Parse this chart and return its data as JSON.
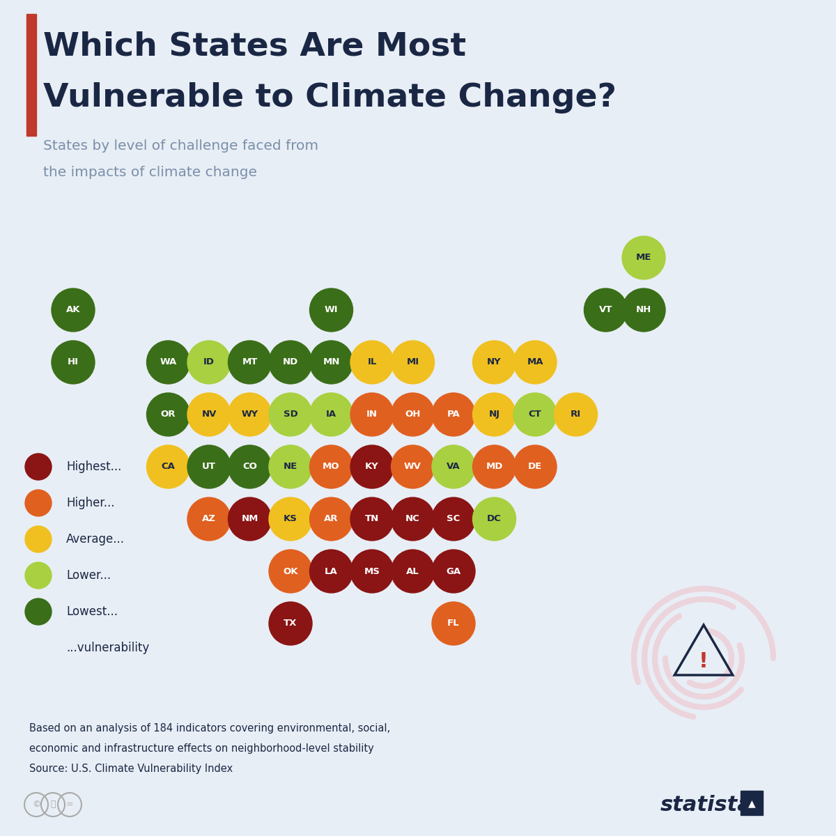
{
  "bg_color": "#e8eef5",
  "title_color": "#1a2744",
  "subtitle_color": "#7a8faa",
  "red_bar_color": "#c0392b",
  "title_line1": "Which States Are Most",
  "title_line2": "Vulnerable to Climate Change?",
  "subtitle_line1": "States by level of challenge faced from",
  "subtitle_line2": "the impacts of climate change",
  "footer1": "Based on an analysis of 184 indicators covering environmental, social,",
  "footer2": "economic and infrastructure effects on neighborhood-level stability",
  "footer3": "Source: U.S. Climate Vulnerability Index",
  "legend": [
    {
      "label": "Highest...",
      "color": "#8B1414"
    },
    {
      "label": "Higher...",
      "color": "#E06020"
    },
    {
      "label": "Average...",
      "color": "#F0C020"
    },
    {
      "label": "Lower...",
      "color": "#A8D040"
    },
    {
      "label": "Lowest...",
      "color": "#3A6E18"
    }
  ],
  "legend_suffix": "...vulnerability",
  "colors": {
    "highest": "#8B1414",
    "higher": "#E06020",
    "average": "#F0C020",
    "lower": "#A8D040",
    "lowest": "#3A6E18"
  },
  "states": [
    {
      "abbr": "ME",
      "col": 10.5,
      "row": 0,
      "color": "lower"
    },
    {
      "abbr": "AK",
      "col": 0,
      "row": 1,
      "color": "lowest"
    },
    {
      "abbr": "VT",
      "col": 9.8,
      "row": 1,
      "color": "lowest"
    },
    {
      "abbr": "NH",
      "col": 10.5,
      "row": 1,
      "color": "lowest"
    },
    {
      "abbr": "HI",
      "col": 0,
      "row": 2,
      "color": "lowest"
    },
    {
      "abbr": "WA",
      "col": 1.75,
      "row": 2,
      "color": "lowest"
    },
    {
      "abbr": "ID",
      "col": 2.5,
      "row": 2,
      "color": "lower"
    },
    {
      "abbr": "MT",
      "col": 3.25,
      "row": 2,
      "color": "lowest"
    },
    {
      "abbr": "ND",
      "col": 4.0,
      "row": 2,
      "color": "lowest"
    },
    {
      "abbr": "MN",
      "col": 4.75,
      "row": 2,
      "color": "lowest"
    },
    {
      "abbr": "WI",
      "col": 4.75,
      "row": 1,
      "color": "lowest"
    },
    {
      "abbr": "IL",
      "col": 5.5,
      "row": 2,
      "color": "average"
    },
    {
      "abbr": "MI",
      "col": 6.25,
      "row": 2,
      "color": "average"
    },
    {
      "abbr": "NY",
      "col": 7.75,
      "row": 2,
      "color": "average"
    },
    {
      "abbr": "MA",
      "col": 8.5,
      "row": 2,
      "color": "average"
    },
    {
      "abbr": "OR",
      "col": 1.75,
      "row": 3,
      "color": "lowest"
    },
    {
      "abbr": "NV",
      "col": 2.5,
      "row": 3,
      "color": "average"
    },
    {
      "abbr": "WY",
      "col": 3.25,
      "row": 3,
      "color": "average"
    },
    {
      "abbr": "SD",
      "col": 4.0,
      "row": 3,
      "color": "lower"
    },
    {
      "abbr": "IA",
      "col": 4.75,
      "row": 3,
      "color": "lower"
    },
    {
      "abbr": "IN",
      "col": 5.5,
      "row": 3,
      "color": "higher"
    },
    {
      "abbr": "OH",
      "col": 6.25,
      "row": 3,
      "color": "higher"
    },
    {
      "abbr": "PA",
      "col": 7.0,
      "row": 3,
      "color": "higher"
    },
    {
      "abbr": "NJ",
      "col": 7.75,
      "row": 3,
      "color": "average"
    },
    {
      "abbr": "CT",
      "col": 8.5,
      "row": 3,
      "color": "lower"
    },
    {
      "abbr": "RI",
      "col": 9.25,
      "row": 3,
      "color": "average"
    },
    {
      "abbr": "CA",
      "col": 1.75,
      "row": 4,
      "color": "average"
    },
    {
      "abbr": "UT",
      "col": 2.5,
      "row": 4,
      "color": "lowest"
    },
    {
      "abbr": "CO",
      "col": 3.25,
      "row": 4,
      "color": "lowest"
    },
    {
      "abbr": "NE",
      "col": 4.0,
      "row": 4,
      "color": "lower"
    },
    {
      "abbr": "MO",
      "col": 4.75,
      "row": 4,
      "color": "higher"
    },
    {
      "abbr": "KY",
      "col": 5.5,
      "row": 4,
      "color": "highest"
    },
    {
      "abbr": "WV",
      "col": 6.25,
      "row": 4,
      "color": "higher"
    },
    {
      "abbr": "VA",
      "col": 7.0,
      "row": 4,
      "color": "lower"
    },
    {
      "abbr": "MD",
      "col": 7.75,
      "row": 4,
      "color": "higher"
    },
    {
      "abbr": "DE",
      "col": 8.5,
      "row": 4,
      "color": "higher"
    },
    {
      "abbr": "AZ",
      "col": 2.5,
      "row": 5,
      "color": "higher"
    },
    {
      "abbr": "NM",
      "col": 3.25,
      "row": 5,
      "color": "highest"
    },
    {
      "abbr": "KS",
      "col": 4.0,
      "row": 5,
      "color": "average"
    },
    {
      "abbr": "AR",
      "col": 4.75,
      "row": 5,
      "color": "higher"
    },
    {
      "abbr": "TN",
      "col": 5.5,
      "row": 5,
      "color": "highest"
    },
    {
      "abbr": "NC",
      "col": 6.25,
      "row": 5,
      "color": "highest"
    },
    {
      "abbr": "SC",
      "col": 7.0,
      "row": 5,
      "color": "highest"
    },
    {
      "abbr": "DC",
      "col": 7.75,
      "row": 5,
      "color": "lower"
    },
    {
      "abbr": "OK",
      "col": 4.0,
      "row": 6,
      "color": "higher"
    },
    {
      "abbr": "LA",
      "col": 4.75,
      "row": 6,
      "color": "highest"
    },
    {
      "abbr": "MS",
      "col": 5.5,
      "row": 6,
      "color": "highest"
    },
    {
      "abbr": "AL",
      "col": 6.25,
      "row": 6,
      "color": "highest"
    },
    {
      "abbr": "GA",
      "col": 7.0,
      "row": 6,
      "color": "highest"
    },
    {
      "abbr": "TX",
      "col": 4.0,
      "row": 7,
      "color": "highest"
    },
    {
      "abbr": "FL",
      "col": 7.0,
      "row": 7,
      "color": "higher"
    }
  ]
}
